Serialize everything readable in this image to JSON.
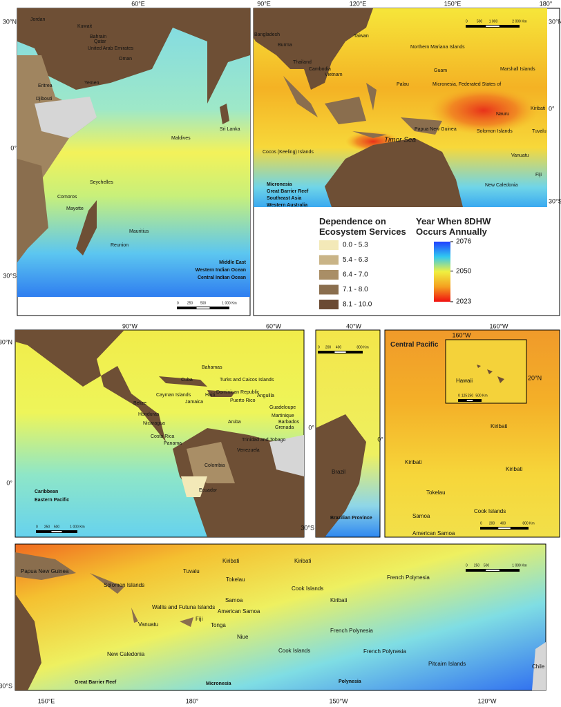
{
  "panels": [
    {
      "axis": [
        "60°E",
        "30°N",
        "0°",
        "30°S"
      ],
      "places": [
        "Jordan",
        "Kuwait",
        "Bahrain",
        "Qatar",
        "United Arab Emirates",
        "Oman",
        "Eritrea",
        "Yemen",
        "Djibouti",
        "Sri Lanka",
        "Maldives",
        "Seychelles",
        "Comoros",
        "Mayotte",
        "Mauritius",
        "Reunion"
      ],
      "regions": [
        "Middle East",
        "Western Indian Ocean",
        "Central Indian Ocean"
      ],
      "scale": [
        "0",
        "250",
        "500",
        "1 000 Km"
      ]
    },
    {
      "axis": [
        "90°E",
        "120°E",
        "150°E",
        "180°",
        "30°N",
        "0°",
        "30°S"
      ],
      "places": [
        "Bangladesh",
        "Taiwan",
        "Burma",
        "Northern Mariana Islands",
        "Thailand",
        "Cambodia",
        "Vietnam",
        "Guam",
        "Marshall Islands",
        "Palau",
        "Micronesia, Federated States of",
        "Kiribati",
        "Nauru",
        "Papua New Guinea",
        "Solomon Islands",
        "Tuvalu",
        "Timor Sea",
        "Cocos (Keeling) Islands",
        "Vanuatu",
        "Fiji",
        "New Caledonia"
      ],
      "regions": [
        "Micronesia",
        "Great Barrier Reef",
        "Southeast Asia",
        "Western Australia"
      ],
      "scale": [
        "0",
        "500",
        "1 000",
        "2 000 Km"
      ]
    },
    {
      "axis": [
        "90°W",
        "60°W",
        "30°N",
        "0°"
      ],
      "places": [
        "Bahamas",
        "Turks and Caicos Islands",
        "Cuba",
        "Cayman Islands",
        "Haiti",
        "Dominican Republic",
        "Anguilla",
        "Jamaica",
        "Puerto Rico",
        "Belize",
        "Guadeloupe",
        "Martinique",
        "Honduras",
        "Barbados",
        "Nicaragua",
        "Grenada",
        "Aruba",
        "Trinidad and Tobago",
        "Costa Rica",
        "Panama",
        "Venezuela",
        "Colombia",
        "Ecuador"
      ],
      "regions": [
        "Caribbean",
        "Eastern Pacific"
      ],
      "scale": [
        "0",
        "250",
        "500",
        "1 000 Km"
      ]
    },
    {
      "axis": [
        "40°W",
        "0°",
        "30°S"
      ],
      "places": [
        "Brazil"
      ],
      "regions": [
        "Brazilian Province"
      ],
      "scale": [
        "0",
        "200",
        "400",
        "800 Km"
      ]
    },
    {
      "axis": [
        "160°W",
        "0°"
      ],
      "title": "Central Pacific",
      "places": [
        "Kiribati",
        "Kiribati",
        "Kiribati",
        "Tokelau",
        "Cook Islands",
        "Samoa",
        "American Samoa"
      ],
      "scale": [
        "0",
        "200",
        "400",
        "800 Km"
      ],
      "inset": {
        "axis": [
          "160°W",
          "20°N"
        ],
        "places": [
          "Hawaii"
        ],
        "scale": [
          "0",
          "125",
          "250",
          "500 Km"
        ]
      }
    },
    {
      "axis": [
        "150°E",
        "180°",
        "150°W",
        "120°W",
        "30°S"
      ],
      "places": [
        "Papua New Guinea",
        "Tuvalu",
        "Kiribati",
        "Kiribati",
        "Solomon Islands",
        "Tokelau",
        "French Polynesia",
        "Cook Islands",
        "Samoa",
        "Wallis and Futuna Islands",
        "Kiribati",
        "American Samoa",
        "Vanuatu",
        "Fiji",
        "Tonga",
        "French Polynesia",
        "Niue",
        "New Caledonia",
        "Cook Islands",
        "French Polynesia",
        "Pitcairn Islands",
        "Chile"
      ],
      "regions": [
        "Great Barrier Reef",
        "Micronesia",
        "Polynesia"
      ],
      "scale": [
        "0",
        "250",
        "500",
        "1 000 Km"
      ]
    }
  ],
  "legend": {
    "title": "Dependence on Ecosystem Services",
    "classes": [
      {
        "label": "0.0 - 5.3",
        "color": "#f3e9b8"
      },
      {
        "label": "5.4 - 6.3",
        "color": "#c9b487"
      },
      {
        "label": "6.4 - 7.0",
        "color": "#a98e66"
      },
      {
        "label": "7.1 - 8.0",
        "color": "#8a6e4e"
      },
      {
        "label": "8.1 - 10.0",
        "color": "#6b4a33"
      }
    ]
  },
  "colorbar": {
    "title": "Year When 8DHW Occurs Annually",
    "lim": [
      2023,
      2076
    ],
    "ticks": [
      2076,
      2050,
      2023
    ]
  }
}
